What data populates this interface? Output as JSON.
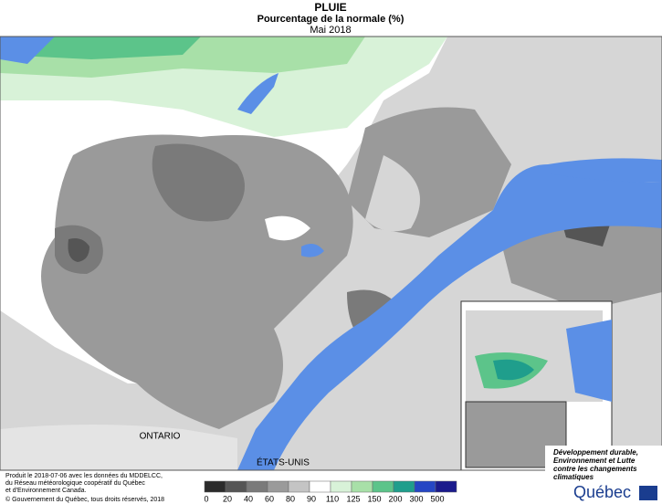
{
  "header": {
    "title": "PLUIE",
    "subtitle": "Pourcentage de la normale (%)",
    "period": "Mai 2018"
  },
  "map_labels": {
    "ontario": "ONTARIO",
    "usa": "ÉTATS-UNIS"
  },
  "legend": {
    "ticks": [
      "0",
      "20",
      "40",
      "60",
      "80",
      "90",
      "110",
      "125",
      "150",
      "200",
      "300",
      "500"
    ],
    "colors": [
      "#2b2b2b",
      "#555555",
      "#7a7a7a",
      "#9a9a9a",
      "#c4c4c4",
      "#ffffff",
      "#d8f2d8",
      "#a8e0a8",
      "#5cc48a",
      "#1f9e8c",
      "#2546c4",
      "#1a1a8c"
    ]
  },
  "credits": [
    "Produit le 2018-07-06 avec les données du MDDELCC,",
    "du Réseau météorologique coopératif du Québec",
    "et d'Environnement Canada.",
    "© Gouvernement du Québec, tous droits réservés, 2018"
  ],
  "logo": {
    "lines": [
      "Développement durable,",
      "Environnement et Lutte",
      "contre les changements",
      "climatiques"
    ],
    "name": "Québec"
  }
}
